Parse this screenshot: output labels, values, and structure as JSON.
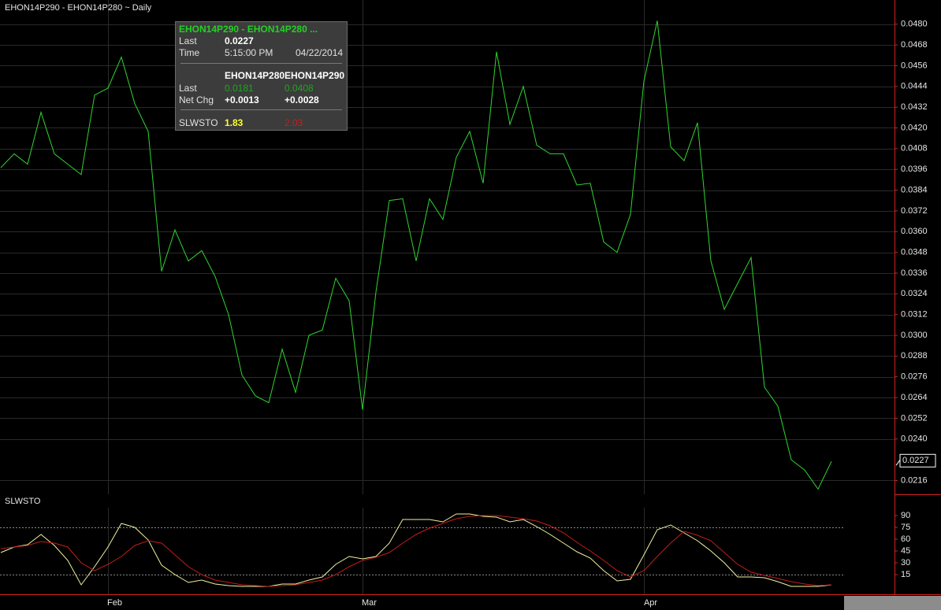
{
  "chart_data": [
    {
      "type": "line",
      "title": "EHON14P290 - EHON14P280 ~ Daily",
      "color": "#2fd62f",
      "categories": [
        null,
        null,
        null,
        null,
        null,
        null,
        null,
        null,
        "Feb",
        null,
        null,
        null,
        null,
        null,
        null,
        null,
        null,
        null,
        null,
        null,
        null,
        null,
        null,
        null,
        null,
        null,
        null,
        "Mar",
        null,
        null,
        null,
        null,
        null,
        null,
        null,
        null,
        null,
        null,
        null,
        null,
        null,
        null,
        null,
        null,
        null,
        null,
        null,
        null,
        "Apr",
        null,
        null,
        null,
        null,
        null,
        null,
        null,
        null,
        null,
        null,
        null,
        null,
        null,
        null
      ],
      "values": [
        0.0397,
        0.0405,
        0.0399,
        0.0429,
        0.0405,
        0.0399,
        0.0393,
        0.0439,
        0.0443,
        0.0461,
        0.0434,
        0.0418,
        0.0337,
        0.0361,
        0.0343,
        0.0349,
        0.0334,
        0.0312,
        0.0277,
        0.0265,
        0.0261,
        0.0292,
        0.0267,
        0.03,
        0.0303,
        0.0333,
        0.032,
        0.0257,
        0.0325,
        0.0378,
        0.0379,
        0.0343,
        0.0379,
        0.0367,
        0.0403,
        0.0418,
        0.0388,
        0.0464,
        0.0422,
        0.0444,
        0.041,
        0.0405,
        0.0405,
        0.0387,
        0.0388,
        0.0354,
        0.0348,
        0.037,
        0.0447,
        0.0482,
        0.0409,
        0.0401,
        0.0423,
        0.0343,
        0.0315,
        0.033,
        0.0345,
        0.027,
        0.0259,
        0.0228,
        0.0222,
        0.0211,
        0.0227
      ],
      "ylim": [
        0.0208,
        0.0494
      ],
      "yticks": [
        0.0216,
        {
          "value": 0.024,
          "label": "0.0240"
        },
        0.0252,
        0.0264,
        0.0276,
        0.0288,
        {
          "value": 0.03,
          "label": "0.0300"
        },
        0.0312,
        0.0324,
        0.0336,
        0.0348,
        {
          "value": 0.036,
          "label": "0.0360"
        },
        0.0372,
        0.0384,
        0.0396,
        0.0408,
        {
          "value": 0.042,
          "label": "0.0420"
        },
        0.0432,
        0.0444,
        0.0456,
        0.0468,
        {
          "value": 0.048,
          "label": "0.0480"
        }
      ],
      "grid": true
    },
    {
      "type": "line",
      "title": "SLWSTO",
      "categories": [
        null,
        null,
        null,
        null,
        null,
        null,
        null,
        null,
        "Feb",
        null,
        null,
        null,
        null,
        null,
        null,
        null,
        null,
        null,
        null,
        null,
        null,
        null,
        null,
        null,
        null,
        null,
        null,
        "Mar",
        null,
        null,
        null,
        null,
        null,
        null,
        null,
        null,
        null,
        null,
        null,
        null,
        null,
        null,
        null,
        null,
        null,
        null,
        null,
        null,
        "Apr",
        null,
        null,
        null,
        null,
        null,
        null,
        null,
        null,
        null,
        null,
        null,
        null,
        null,
        null
      ],
      "series": [
        {
          "color": "#f2f2a0",
          "values": [
            43,
            50,
            53,
            66,
            52,
            33,
            2,
            25,
            50,
            80,
            75,
            59,
            27,
            15,
            5,
            8,
            3,
            1,
            0,
            0,
            0,
            3,
            3,
            8,
            12,
            28,
            38,
            35,
            38,
            55,
            85,
            85,
            85,
            82,
            92,
            92,
            89,
            88,
            82,
            85,
            76,
            66,
            55,
            44,
            36,
            20,
            7,
            9,
            40,
            72,
            78,
            68,
            58,
            45,
            30,
            12,
            12,
            11,
            6,
            0,
            0,
            0,
            1.83
          ]
        },
        {
          "color": "#c41c1c",
          "values": [
            48,
            50,
            52,
            57,
            55,
            50,
            30,
            20,
            28,
            38,
            52,
            58,
            55,
            40,
            25,
            15,
            8,
            5,
            2,
            1,
            0,
            1,
            2,
            5,
            8,
            15,
            25,
            33,
            37,
            43,
            55,
            66,
            74,
            80,
            86,
            89,
            90,
            90,
            88,
            86,
            83,
            77,
            68,
            56,
            45,
            33,
            20,
            12,
            20,
            38,
            55,
            70,
            65,
            58,
            43,
            28,
            18,
            14,
            10,
            6,
            3,
            1,
            2.03
          ]
        }
      ],
      "ylim": [
        -10,
        100
      ],
      "yticks": [
        15,
        30,
        45,
        60,
        75,
        90
      ],
      "levels": [
        75,
        15
      ]
    }
  ],
  "tooltip": {
    "title": "EHON14P290 - EHON14P280  ...",
    "last_label": "Last",
    "time_label": "Time",
    "time": "5:15:00 PM",
    "date": "04/22/2014",
    "leg1": "EHON14P280",
    "leg2": "EHON14P290",
    "leg_last_label": "Last",
    "leg1_last": 0.0181,
    "leg2_last": 0.0408,
    "netchg_label": "Net Chg",
    "leg1_netchg": "+0.0013",
    "leg2_netchg": "+0.0028",
    "indicator": "SLWSTO"
  }
}
